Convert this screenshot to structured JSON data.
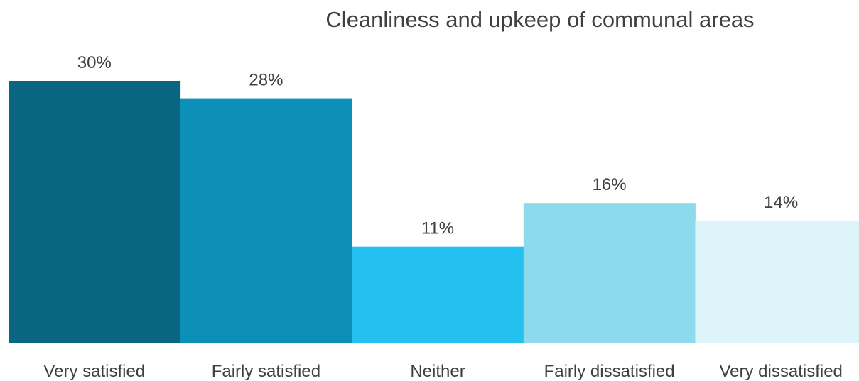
{
  "chart_data": {
    "type": "bar",
    "title": "Cleanliness and upkeep of communal areas",
    "categories": [
      "Very satisfied",
      "Fairly satisfied",
      "Neither",
      "Fairly dissatisfied",
      "Very dissatisfied"
    ],
    "values": [
      30,
      28,
      11,
      16,
      14
    ],
    "value_labels": [
      "30%",
      "28%",
      "11%",
      "16%",
      "14%"
    ],
    "colors": [
      "#0a6583",
      "#0d90b8",
      "#24c0ef",
      "#8ddaec",
      "#ddf4fb"
    ],
    "xlabel": "",
    "ylabel": "",
    "ylim": [
      0,
      30
    ],
    "grid": false,
    "legend": "none"
  }
}
